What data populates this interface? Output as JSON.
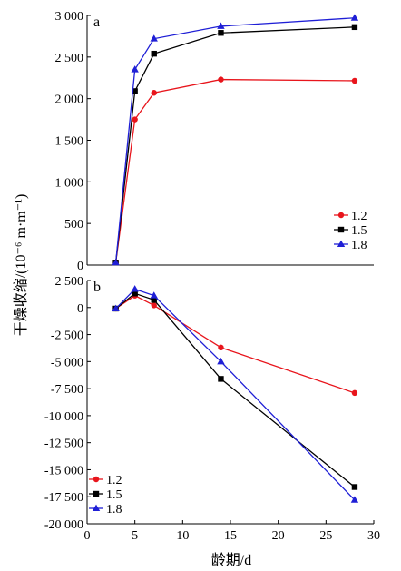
{
  "chart_data": [
    {
      "panel_tag": "a",
      "type": "line",
      "xlim": [
        0,
        30
      ],
      "ylim": [
        0,
        3000
      ],
      "yticks": [
        0,
        500,
        1000,
        1500,
        2000,
        2500,
        3000
      ],
      "ytick_labels": [
        "0",
        "500",
        "1 000",
        "1 500",
        "2 000",
        "2 500",
        "3 000"
      ],
      "legend_position": "bottom-right",
      "series": [
        {
          "name": "1.2",
          "color": "#e8151c",
          "marker": "circle",
          "x": [
            3,
            5,
            7,
            14,
            28
          ],
          "y": [
            30,
            1750,
            2070,
            2230,
            2215
          ]
        },
        {
          "name": "1.5",
          "color": "#000000",
          "marker": "square",
          "x": [
            3,
            5,
            7,
            14,
            28
          ],
          "y": [
            30,
            2090,
            2540,
            2790,
            2860
          ]
        },
        {
          "name": "1.8",
          "color": "#1f1fd6",
          "marker": "triangle",
          "x": [
            3,
            5,
            7,
            14,
            28
          ],
          "y": [
            30,
            2350,
            2720,
            2870,
            2970
          ]
        }
      ]
    },
    {
      "panel_tag": "b",
      "type": "line",
      "xlim": [
        0,
        30
      ],
      "ylim": [
        -20000,
        2500
      ],
      "xticks": [
        0,
        5,
        10,
        15,
        20,
        25,
        30
      ],
      "xtick_labels": [
        "0",
        "5",
        "10",
        "15",
        "20",
        "25",
        "30"
      ],
      "yticks": [
        2500,
        0,
        -2500,
        -5000,
        -7500,
        -10000,
        -12500,
        -15000,
        -17500,
        -20000
      ],
      "ytick_labels": [
        "2 500",
        "0",
        "-2 500",
        "-5 000",
        "-7 500",
        "-10 000",
        "-12 500",
        "-15 000",
        "-17 500",
        "-20 000"
      ],
      "legend_position": "bottom-left",
      "series": [
        {
          "name": "1.2",
          "color": "#e8151c",
          "marker": "circle",
          "x": [
            3,
            5,
            7,
            14,
            28
          ],
          "y": [
            -100,
            1100,
            200,
            -3700,
            -7900
          ]
        },
        {
          "name": "1.5",
          "color": "#000000",
          "marker": "square",
          "x": [
            3,
            5,
            7,
            14,
            28
          ],
          "y": [
            -100,
            1300,
            700,
            -6600,
            -16600
          ]
        },
        {
          "name": "1.8",
          "color": "#1f1fd6",
          "marker": "triangle",
          "x": [
            3,
            5,
            7,
            14,
            28
          ],
          "y": [
            -100,
            1700,
            1100,
            -5000,
            -17800
          ]
        }
      ]
    }
  ],
  "y_axis_title": "干燥收缩/(10⁻⁶ m·m⁻¹)",
  "x_axis_title": "龄期/d"
}
